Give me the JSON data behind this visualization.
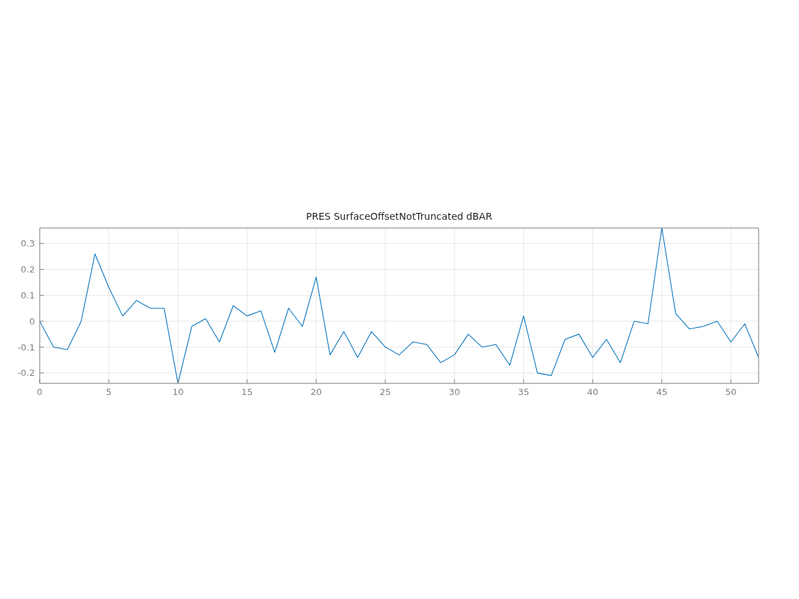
{
  "chart_data": {
    "type": "line",
    "title": "PRES SurfaceOffsetNotTruncated dBAR",
    "x": [
      0,
      1,
      2,
      3,
      4,
      5,
      6,
      7,
      8,
      9,
      10,
      11,
      12,
      13,
      14,
      15,
      16,
      17,
      18,
      19,
      20,
      21,
      22,
      23,
      24,
      25,
      26,
      27,
      28,
      29,
      30,
      31,
      32,
      33,
      34,
      35,
      36,
      37,
      38,
      39,
      40,
      41,
      42,
      43,
      44,
      45,
      46,
      47,
      48,
      49,
      50,
      51,
      52
    ],
    "series": [
      {
        "color": "#0072bd",
        "values": [
          0,
          -0.1,
          -0.11,
          0,
          0.26,
          0.13,
          0.02,
          0.08,
          0.05,
          0.05,
          -0.24,
          -0.02,
          0.01,
          -0.08,
          0.06,
          0.02,
          0.04,
          -0.12,
          0.05,
          -0.02,
          0.17,
          -0.13,
          -0.04,
          -0.14,
          -0.04,
          -0.1,
          -0.13,
          -0.08,
          -0.09,
          -0.16,
          -0.13,
          -0.05,
          -0.1,
          -0.09,
          -0.17,
          0.02,
          -0.2,
          -0.21,
          -0.07,
          -0.05,
          -0.14,
          -0.07,
          -0.16,
          0,
          -0.01,
          0.36,
          0.03,
          -0.03,
          -0.02,
          0,
          -0.08,
          -0.01,
          -0.14
        ]
      }
    ],
    "xlim": [
      0,
      52
    ],
    "ylim": [
      -0.24,
      0.36
    ],
    "xticks": [
      0,
      5,
      10,
      15,
      20,
      25,
      30,
      35,
      40,
      45,
      50
    ],
    "yticks": [
      -0.2,
      -0.1,
      0,
      0.1,
      0.2,
      0.3
    ],
    "grid": true,
    "marker": "none",
    "line_style": "solid"
  }
}
